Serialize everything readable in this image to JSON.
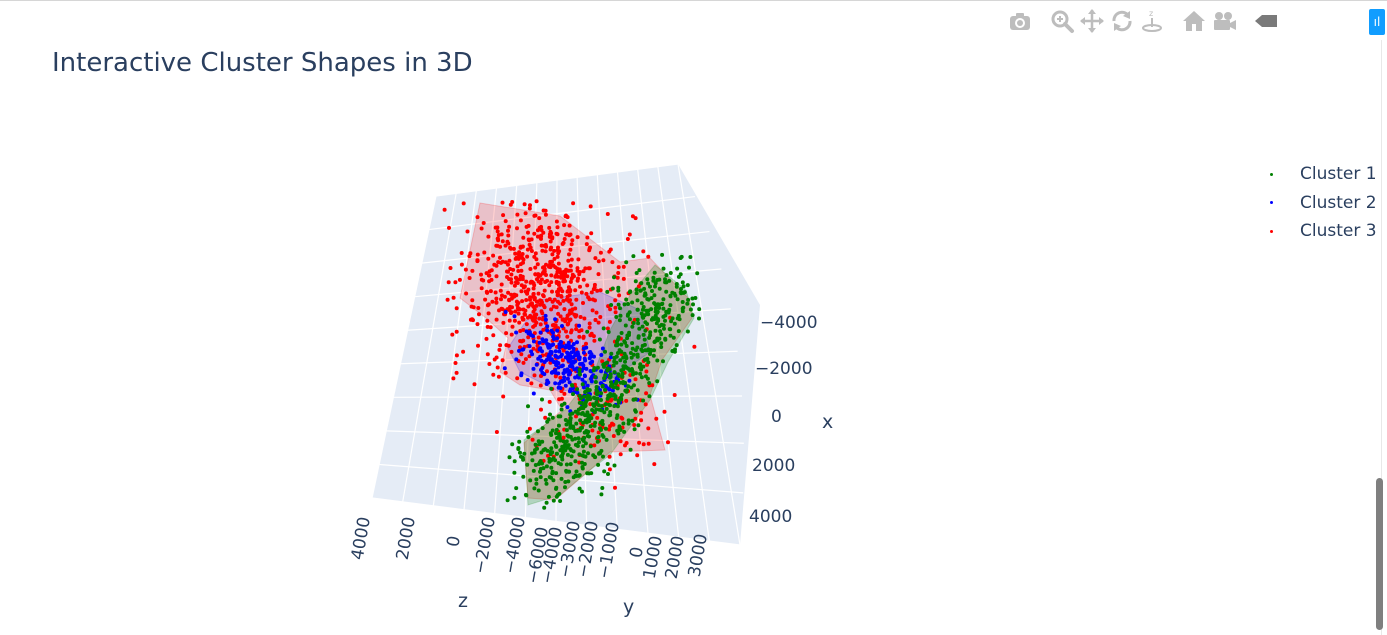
{
  "title": "Interactive Cluster Shapes in 3D",
  "modebar": {
    "buttons": [
      {
        "name": "camera-icon"
      },
      {
        "name": "zoom-icon"
      },
      {
        "name": "pan-icon"
      },
      {
        "name": "orbit-rotation-icon"
      },
      {
        "name": "turntable-rotation-icon"
      },
      {
        "name": "home-icon"
      },
      {
        "name": "save-camera-icon"
      },
      {
        "name": "hover-icon"
      }
    ],
    "badge": "ıl"
  },
  "legend": {
    "items": [
      {
        "label": "Cluster 1",
        "color": "#008000"
      },
      {
        "label": "Cluster 2",
        "color": "#0000ff"
      },
      {
        "label": "Cluster 3",
        "color": "#ff0000"
      }
    ]
  },
  "chart_data": {
    "type": "scatter",
    "dimensions": 3,
    "axes": {
      "x": {
        "label": "x",
        "ticks": [
          "−4000",
          "−2000",
          "0",
          "2000",
          "4000"
        ]
      },
      "y": {
        "label": "y",
        "ticks": [
          "−6000",
          "−4000",
          "−3000",
          "−2000",
          "−1000",
          "0",
          "1000",
          "2000",
          "3000"
        ]
      },
      "z": {
        "label": "z",
        "ticks": [
          "4000",
          "2000",
          "0",
          "−2000",
          "−4000"
        ]
      }
    },
    "series": [
      {
        "name": "Cluster 1",
        "color": "#008000",
        "approx_points": 700,
        "hull_color": "#008000",
        "hull_opacity": 0.22
      },
      {
        "name": "Cluster 2",
        "color": "#0000ff",
        "approx_points": 300,
        "hull_color": "#0000ff",
        "hull_opacity": 0.18
      },
      {
        "name": "Cluster 3",
        "color": "#ff0000",
        "approx_points": 900,
        "hull_color": "#ff0000",
        "hull_opacity": 0.18
      }
    ],
    "grid": true,
    "legend_position": "top-right"
  }
}
